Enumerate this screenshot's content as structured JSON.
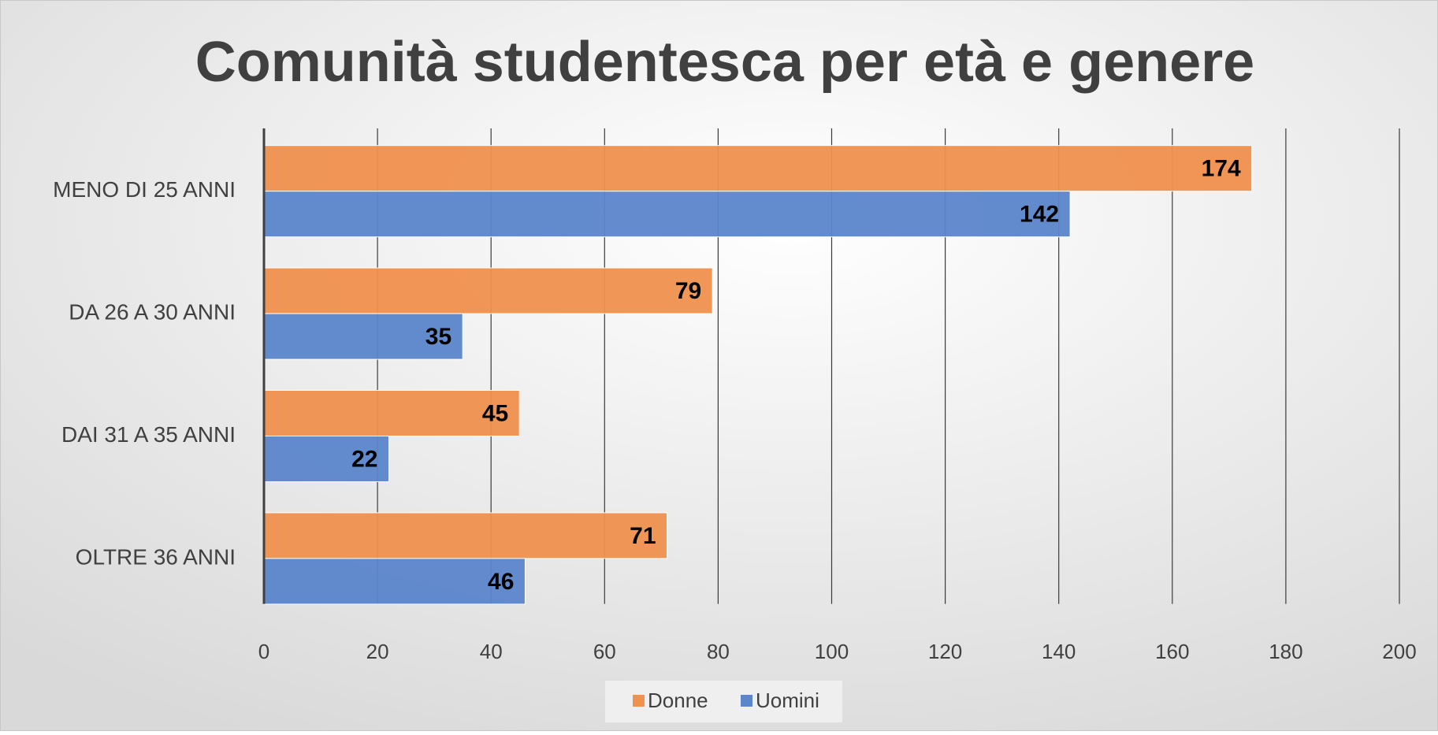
{
  "chart_data": {
    "type": "bar",
    "orientation": "horizontal",
    "title": "Comunità studentesca per età e genere",
    "categories": [
      "MENO DI 25 ANNI",
      "DA 26 A 30 ANNI",
      "DAI 31 A 35 ANNI",
      "OLTRE 36 ANNI"
    ],
    "series": [
      {
        "name": "Donne",
        "color": "#f0914e",
        "values": [
          174,
          79,
          45,
          71
        ]
      },
      {
        "name": "Uomini",
        "color": "#5b86cc",
        "values": [
          142,
          35,
          22,
          46
        ]
      }
    ],
    "xlim": [
      0,
      200
    ],
    "xticks": [
      0,
      20,
      40,
      60,
      80,
      100,
      120,
      140,
      160,
      180,
      200
    ],
    "grid": true,
    "legend": "bottom",
    "data_labels": true
  }
}
